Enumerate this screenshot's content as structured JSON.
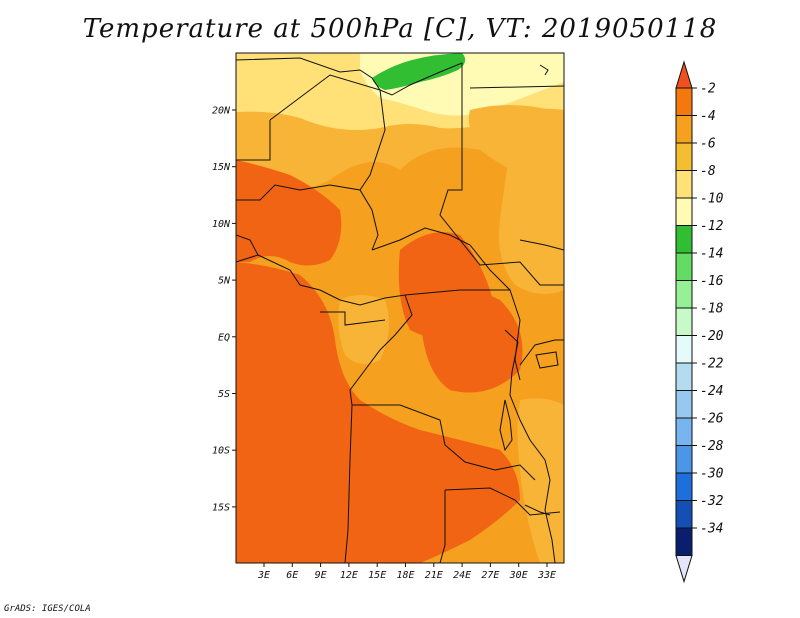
{
  "title": "Temperature at 500hPa [C], VT: 2019050118",
  "credit": "GrADS: IGES/COLA",
  "map": {
    "lat_labels": [
      "20N",
      "15N",
      "10N",
      "5N",
      "EQ",
      "5S",
      "10S",
      "15S"
    ],
    "lon_labels": [
      "3E",
      "6E",
      "9E",
      "12E",
      "15E",
      "18E",
      "21E",
      "24E",
      "27E",
      "30E",
      "33E"
    ]
  },
  "colorbar": {
    "labels": [
      "-2",
      "-4",
      "-6",
      "-8",
      "-10",
      "-12",
      "-14",
      "-16",
      "-18",
      "-20",
      "-22",
      "-24",
      "-26",
      "-28",
      "-30",
      "-32",
      "-34"
    ],
    "colors": [
      "#f0501e",
      "#f5780f",
      "#f5a01e",
      "#f5be32",
      "#ffe178",
      "#fffab4",
      "#32be32",
      "#64dc64",
      "#96f096",
      "#c8fac8",
      "#e6fafa",
      "#b4dcf0",
      "#96c8f0",
      "#78b4f0",
      "#4b96e6",
      "#1e6edc",
      "#1450b4",
      "#0a1e6e",
      "#e6e6fa"
    ],
    "out_of_range": [
      "above -2",
      "below -34"
    ]
  },
  "palette": {
    "deep_orange": "#f06414",
    "orange": "#f5a01e",
    "light_orange": "#f7b436",
    "yellow": "#ffe178",
    "pale_yellow": "#fffab4",
    "green": "#32be32"
  }
}
